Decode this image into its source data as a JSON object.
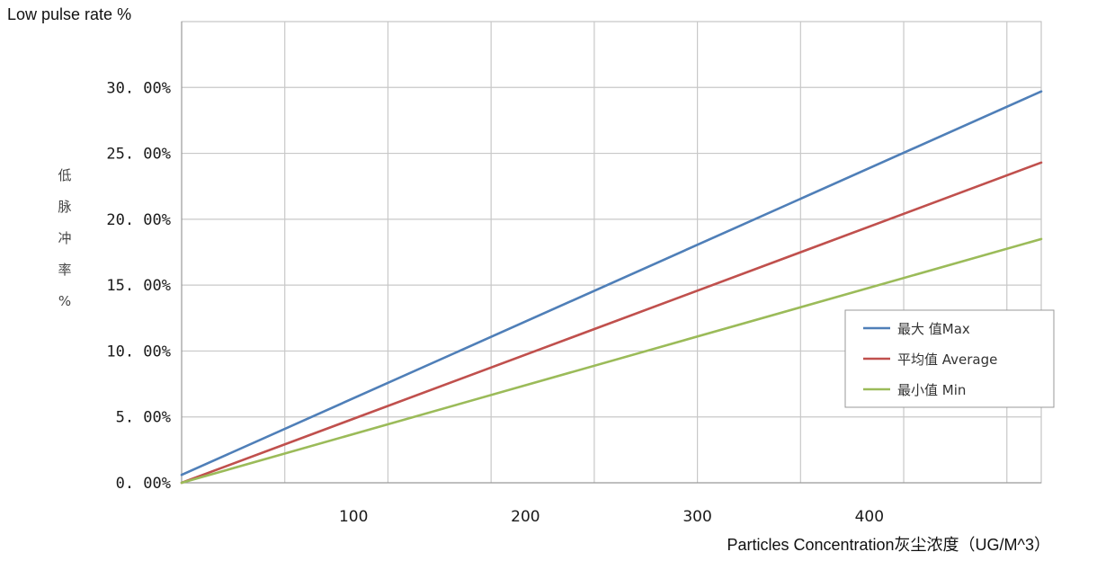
{
  "chart_data": {
    "type": "line",
    "title": "Low pulse rate %",
    "ylabel_cn": "低脉冲率%",
    "xlabel": "Particles Concentration灰尘浓度（UG/M^3）",
    "x": [
      0,
      500
    ],
    "xticks": [
      "100",
      "200",
      "300",
      "400"
    ],
    "xtick_values": [
      100,
      200,
      300,
      400
    ],
    "xlim": [
      0,
      500
    ],
    "yticks": [
      "0. 00%",
      "5. 00%",
      "10. 00%",
      "15. 00%",
      "20. 00%",
      "25. 00%",
      "30. 00%"
    ],
    "ytick_values": [
      0,
      5,
      10,
      15,
      20,
      25,
      30
    ],
    "ylim": [
      0,
      35
    ],
    "grid": true,
    "legend_position": "right",
    "series": [
      {
        "name": "最大 值Max",
        "values": [
          0.6,
          29.7
        ],
        "color": "#4f7fb8"
      },
      {
        "name": "平均值 Average",
        "values": [
          0.0,
          24.3
        ],
        "color": "#c0504d"
      },
      {
        "name": "最小值 Min",
        "values": [
          0.0,
          18.5
        ],
        "color": "#9bbb59"
      }
    ]
  }
}
